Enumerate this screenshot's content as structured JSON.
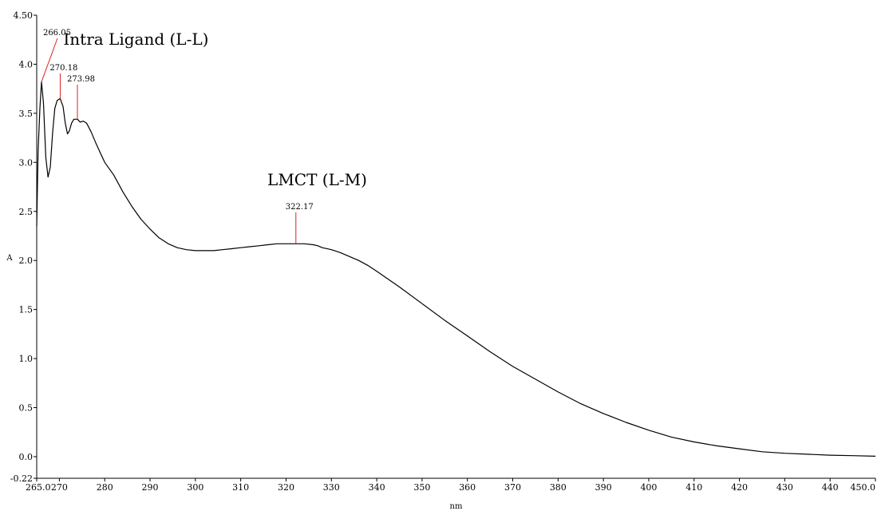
{
  "chart_data": {
    "type": "line",
    "xlabel": "nm",
    "ylabel": "A",
    "xlim": [
      265.0,
      450.0
    ],
    "ylim": [
      -0.22,
      4.5
    ],
    "x_ticks": [
      265.0,
      270,
      280,
      290,
      300,
      310,
      320,
      330,
      340,
      350,
      360,
      370,
      380,
      390,
      400,
      410,
      420,
      430,
      440,
      450.0
    ],
    "x_tick_labels": [
      "265.0",
      "270",
      "280",
      "290",
      "300",
      "310",
      "320",
      "330",
      "340",
      "350",
      "360",
      "370",
      "380",
      "390",
      "400",
      "410",
      "420",
      "430",
      "440",
      "450.0"
    ],
    "y_ticks": [
      -0.22,
      0.0,
      0.5,
      1.0,
      1.5,
      2.0,
      2.5,
      3.0,
      3.5,
      4.0,
      4.5
    ],
    "y_tick_labels": [
      "-0.22",
      "0.0",
      "0.5",
      "1.0",
      "1.5",
      "2.0",
      "2.5",
      "3.0",
      "3.5",
      "4.0",
      "4.50"
    ],
    "grid": false,
    "line_color": "#000000",
    "marker_color": "#e02020",
    "series": [
      {
        "x": [
          265.0,
          265.3,
          265.7,
          266.05,
          266.5,
          267.0,
          267.5,
          268.0,
          268.5,
          269.0,
          269.5,
          270.18,
          270.8,
          271.3,
          271.8,
          272.2,
          272.7,
          273.2,
          273.98,
          274.6,
          275.3,
          276.0,
          277.0,
          278.0,
          279.0,
          280.0,
          282.0,
          284.0,
          286.0,
          288.0,
          290.0,
          292.0,
          294.0,
          296.0,
          298.0,
          300.0,
          302.0,
          304.0,
          306.0,
          308.0,
          310.0,
          312.0,
          314.0,
          316.0,
          318.0,
          320.0,
          322.17,
          324.0,
          326.0,
          327.0,
          328.0,
          330.0,
          332.0,
          334.0,
          336.0,
          338.0,
          340.0,
          345.0,
          350.0,
          355.0,
          360.0,
          365.0,
          370.0,
          375.0,
          380.0,
          385.0,
          390.0,
          395.0,
          400.0,
          405.0,
          410.0,
          415.0,
          420.0,
          425.0,
          430.0,
          435.0,
          440.0,
          445.0,
          450.0
        ],
        "y": [
          2.35,
          3.1,
          3.55,
          3.82,
          3.6,
          3.05,
          2.85,
          2.95,
          3.3,
          3.55,
          3.63,
          3.65,
          3.57,
          3.4,
          3.29,
          3.32,
          3.4,
          3.44,
          3.44,
          3.41,
          3.42,
          3.4,
          3.31,
          3.2,
          3.1,
          3.0,
          2.87,
          2.7,
          2.55,
          2.42,
          2.32,
          2.23,
          2.17,
          2.13,
          2.11,
          2.1,
          2.1,
          2.1,
          2.11,
          2.12,
          2.13,
          2.14,
          2.15,
          2.16,
          2.17,
          2.17,
          2.17,
          2.17,
          2.16,
          2.15,
          2.13,
          2.11,
          2.08,
          2.04,
          2.0,
          1.95,
          1.89,
          1.73,
          1.56,
          1.39,
          1.23,
          1.07,
          0.92,
          0.79,
          0.66,
          0.54,
          0.44,
          0.35,
          0.27,
          0.2,
          0.15,
          0.11,
          0.08,
          0.05,
          0.035,
          0.025,
          0.015,
          0.01,
          0.005
        ]
      }
    ],
    "peaks": [
      {
        "label": "266.05",
        "x": 266.05,
        "y": 3.82
      },
      {
        "label": "270.18",
        "x": 270.18,
        "y": 3.65
      },
      {
        "label": "273.98",
        "x": 273.98,
        "y": 3.44
      },
      {
        "label": "322.17",
        "x": 322.17,
        "y": 2.17
      }
    ],
    "annotations": [
      {
        "text": "Intra Ligand (L-L)",
        "x": 270.0,
        "y": 4.35
      },
      {
        "text": "LMCT (L-M)",
        "x": 315.0,
        "y": 2.8
      }
    ]
  }
}
